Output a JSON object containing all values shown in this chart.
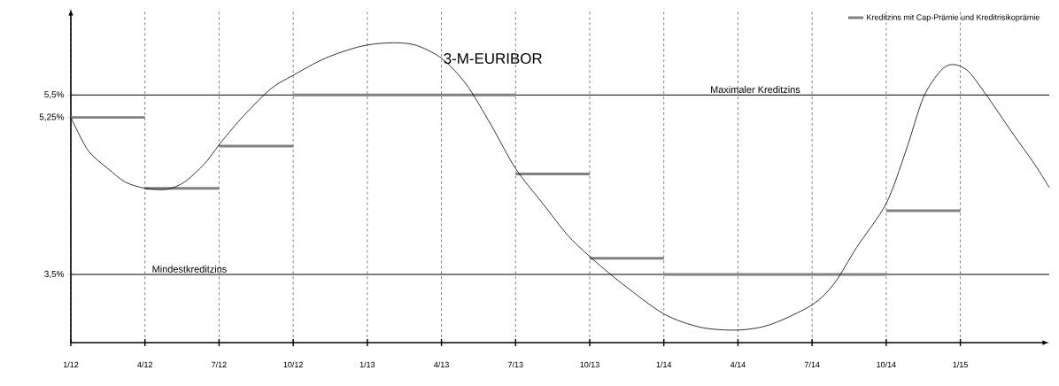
{
  "chart_data": {
    "type": "line",
    "series": [
      {
        "name": "3-M-EURIBOR",
        "type": "line",
        "color": "#000000",
        "x": [
          "2012-01-01",
          "2012-01-23",
          "2012-02-16",
          "2012-03-08",
          "2012-04-01",
          "2012-04-28",
          "2012-05-20",
          "2012-06-12",
          "2012-07-04",
          "2012-08-01",
          "2012-09-04",
          "2012-10-01",
          "2012-11-09",
          "2012-12-23",
          "2013-01-26",
          "2013-02-28",
          "2013-04-01",
          "2013-05-01",
          "2013-06-01",
          "2013-07-01",
          "2013-08-03",
          "2013-09-05",
          "2013-10-01",
          "2013-11-09",
          "2014-01-01",
          "2014-02-15",
          "2014-04-01",
          "2014-05-11",
          "2014-07-01",
          "2014-07-28",
          "2014-08-25",
          "2014-10-01",
          "2014-10-25",
          "2014-11-16",
          "2014-12-07",
          "2014-12-23",
          "2015-01-10",
          "2015-02-01",
          "2015-03-03",
          "2015-03-30",
          "2015-04-19"
        ],
        "values": [
          5.25,
          4.88,
          4.68,
          4.53,
          4.46,
          4.45,
          4.53,
          4.73,
          4.98,
          5.27,
          5.57,
          5.72,
          5.91,
          6.04,
          6.08,
          6.06,
          5.91,
          5.62,
          5.17,
          4.68,
          4.29,
          3.94,
          3.7,
          3.4,
          3.06,
          2.91,
          2.88,
          2.94,
          3.16,
          3.4,
          3.8,
          4.29,
          4.88,
          5.47,
          5.77,
          5.84,
          5.77,
          5.52,
          5.08,
          4.73,
          4.47
        ]
      },
      {
        "name": "Kreditzins mit Cap-Prämie und Kreditrisikoprämie",
        "type": "step",
        "color": "#808080",
        "x": [
          "2012-01",
          "2012-04",
          "2012-07",
          "2012-10",
          "2013-01",
          "2013-04",
          "2013-07",
          "2013-10",
          "2014-01",
          "2014-04",
          "2014-07",
          "2014-10",
          "2015-01"
        ],
        "values": [
          5.25,
          4.46,
          4.93,
          5.5,
          5.5,
          5.5,
          4.62,
          3.68,
          3.5,
          3.5,
          3.5,
          4.21,
          4.21
        ]
      }
    ],
    "xlim": [
      "2012-01",
      "2015-04-20"
    ],
    "ylim": [
      2.74,
      6.46
    ],
    "xticks": [
      {
        "value": "2012-01",
        "label": "1/12"
      },
      {
        "value": "2012-04",
        "label": "4/12"
      },
      {
        "value": "2012-07",
        "label": "7/12"
      },
      {
        "value": "2012-10",
        "label": "10/12"
      },
      {
        "value": "2013-01",
        "label": "1/13"
      },
      {
        "value": "2013-04",
        "label": "4/13"
      },
      {
        "value": "2013-07",
        "label": "7/13"
      },
      {
        "value": "2013-10",
        "label": "10/13"
      },
      {
        "value": "2014-01",
        "label": "1/14"
      },
      {
        "value": "2014-04",
        "label": "4/14"
      },
      {
        "value": "2014-07",
        "label": "7/14"
      },
      {
        "value": "2014-10",
        "label": "10/14"
      },
      {
        "value": "2015-01",
        "label": "1/15"
      }
    ],
    "yticks": [
      {
        "value": 3.5,
        "label": "3,5%"
      },
      {
        "value": 5.25,
        "label": "5,25%"
      },
      {
        "value": 5.5,
        "label": "5,5%"
      }
    ],
    "grid": "x",
    "legend": "top right",
    "ref_lines": [
      {
        "axis": "y",
        "value": 5.5,
        "label": "Maximaler Kreditzins",
        "color": "#000000"
      },
      {
        "axis": "y",
        "value": 3.5,
        "label": "Mindestkreditzins",
        "color": "#000000"
      }
    ]
  }
}
